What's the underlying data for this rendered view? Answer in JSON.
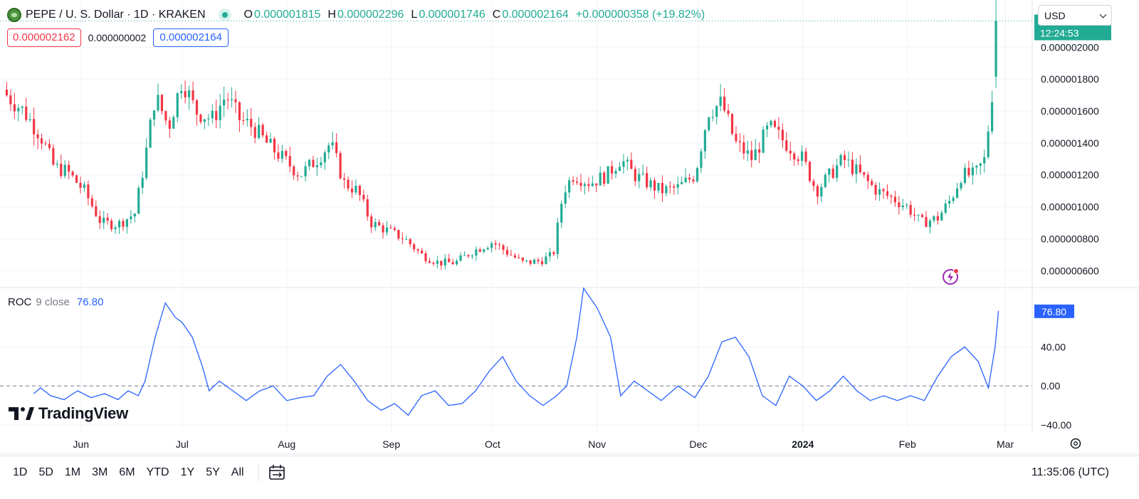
{
  "header": {
    "symbol_title": "PEPE / U. S. Dollar · 1D · KRAKEN",
    "ohlc": [
      {
        "key": "O",
        "value": "0.000001815"
      },
      {
        "key": "H",
        "value": "0.000002296"
      },
      {
        "key": "L",
        "value": "0.000001746"
      },
      {
        "key": "C",
        "value": "0.000002164"
      }
    ],
    "change": "+0.000000358 (+19.82%)",
    "bid": "0.000002162",
    "spread": "0.000000002",
    "ask": "0.000002164",
    "currency": "USD"
  },
  "colors": {
    "up": "#22ab94",
    "down": "#f23645",
    "roc_line": "#2962ff",
    "price_label_bg": "#22ab94",
    "roc_label_bg": "#2962ff"
  },
  "chart_data": [
    {
      "type": "candlestick",
      "title": "PEPE / U. S. Dollar · 1D · KRAKEN",
      "y_ticks": [
        "0.000002000",
        "0.000001800",
        "0.000001600",
        "0.000001400",
        "0.000001200",
        "0.000001000",
        "0.000000800",
        "0.000000600"
      ],
      "y_tick_values": [
        2e-06,
        1.8e-06,
        1.6e-06,
        1.4e-06,
        1.2e-06,
        1e-06,
        8e-07,
        6e-07
      ],
      "x_ticks": [
        "Jun",
        "Jul",
        "Aug",
        "Sep",
        "Oct",
        "Nov",
        "Dec",
        "2024",
        "Feb",
        "Mar"
      ],
      "x_tick_dates": [
        "2023-06-01",
        "2023-07-01",
        "2023-08-01",
        "2023-09-01",
        "2023-10-01",
        "2023-11-01",
        "2023-12-01",
        "2024-01-01",
        "2024-02-01",
        "2024-03-01"
      ],
      "ylim": [
        5.3e-07,
        2.26e-06
      ],
      "x_range": [
        "2023-05-08",
        "2024-03-09"
      ],
      "grid": true,
      "last_price_label": "0.000002164",
      "countdown_label": "12:24:53",
      "series": [
        {
          "date": "2023-05-10",
          "close": 1.7e-06
        },
        {
          "date": "2023-05-15",
          "close": 1.6e-06
        },
        {
          "date": "2023-05-20",
          "close": 1.45e-06
        },
        {
          "date": "2023-05-24",
          "close": 1.25e-06
        },
        {
          "date": "2023-05-28",
          "close": 1.22e-06
        },
        {
          "date": "2023-06-02",
          "close": 1.1e-06
        },
        {
          "date": "2023-06-07",
          "close": 9e-07
        },
        {
          "date": "2023-06-12",
          "close": 8.9e-07
        },
        {
          "date": "2023-06-17",
          "close": 9.6e-07
        },
        {
          "date": "2023-06-20",
          "close": 1.3e-06
        },
        {
          "date": "2023-06-23",
          "close": 1.7e-06
        },
        {
          "date": "2023-06-27",
          "close": 1.5e-06
        },
        {
          "date": "2023-07-01",
          "close": 1.8e-06
        },
        {
          "date": "2023-07-05",
          "close": 1.6e-06
        },
        {
          "date": "2023-07-10",
          "close": 1.55e-06
        },
        {
          "date": "2023-07-14",
          "close": 1.7e-06
        },
        {
          "date": "2023-07-18",
          "close": 1.55e-06
        },
        {
          "date": "2023-07-22",
          "close": 1.5e-06
        },
        {
          "date": "2023-07-26",
          "close": 1.4e-06
        },
        {
          "date": "2023-07-31",
          "close": 1.3e-06
        },
        {
          "date": "2023-08-05",
          "close": 1.2e-06
        },
        {
          "date": "2023-08-10",
          "close": 1.3e-06
        },
        {
          "date": "2023-08-14",
          "close": 1.4e-06
        },
        {
          "date": "2023-08-18",
          "close": 1.15e-06
        },
        {
          "date": "2023-08-22",
          "close": 1.1e-06
        },
        {
          "date": "2023-08-26",
          "close": 9e-07
        },
        {
          "date": "2023-08-31",
          "close": 8.5e-07
        },
        {
          "date": "2023-09-05",
          "close": 8e-07
        },
        {
          "date": "2023-09-10",
          "close": 7e-07
        },
        {
          "date": "2023-09-15",
          "close": 6.5e-07
        },
        {
          "date": "2023-09-20",
          "close": 6.5e-07
        },
        {
          "date": "2023-09-25",
          "close": 7.2e-07
        },
        {
          "date": "2023-10-01",
          "close": 7.8e-07
        },
        {
          "date": "2023-10-05",
          "close": 7.2e-07
        },
        {
          "date": "2023-10-10",
          "close": 6.5e-07
        },
        {
          "date": "2023-10-15",
          "close": 6.6e-07
        },
        {
          "date": "2023-10-19",
          "close": 7e-07
        },
        {
          "date": "2023-10-22",
          "close": 1.1e-06
        },
        {
          "date": "2023-10-25",
          "close": 1.2e-06
        },
        {
          "date": "2023-10-30",
          "close": 1.15e-06
        },
        {
          "date": "2023-11-04",
          "close": 1.2e-06
        },
        {
          "date": "2023-11-08",
          "close": 1.3e-06
        },
        {
          "date": "2023-11-12",
          "close": 1.2e-06
        },
        {
          "date": "2023-11-16",
          "close": 1.15e-06
        },
        {
          "date": "2023-11-20",
          "close": 1.1e-06
        },
        {
          "date": "2023-11-25",
          "close": 1.12e-06
        },
        {
          "date": "2023-11-30",
          "close": 1.2e-06
        },
        {
          "date": "2023-12-04",
          "close": 1.6e-06
        },
        {
          "date": "2023-12-08",
          "close": 1.65e-06
        },
        {
          "date": "2023-12-12",
          "close": 1.4e-06
        },
        {
          "date": "2023-12-17",
          "close": 1.3e-06
        },
        {
          "date": "2023-12-22",
          "close": 1.5e-06
        },
        {
          "date": "2023-12-27",
          "close": 1.4e-06
        },
        {
          "date": "2024-01-01",
          "close": 1.3e-06
        },
        {
          "date": "2024-01-05",
          "close": 1.1e-06
        },
        {
          "date": "2024-01-09",
          "close": 1.2e-06
        },
        {
          "date": "2024-01-13",
          "close": 1.3e-06
        },
        {
          "date": "2024-01-18",
          "close": 1.2e-06
        },
        {
          "date": "2024-01-23",
          "close": 1.1e-06
        },
        {
          "date": "2024-01-28",
          "close": 1.05e-06
        },
        {
          "date": "2024-02-01",
          "close": 1e-06
        },
        {
          "date": "2024-02-05",
          "close": 9e-07
        },
        {
          "date": "2024-02-10",
          "close": 9.3e-07
        },
        {
          "date": "2024-02-14",
          "close": 1.05e-06
        },
        {
          "date": "2024-02-17",
          "close": 1.2e-06
        },
        {
          "date": "2024-02-21",
          "close": 1.2e-06
        },
        {
          "date": "2024-02-24",
          "close": 1.3e-06
        },
        {
          "date": "2024-02-26",
          "close": 1.7e-06
        },
        {
          "date": "2024-02-27",
          "close": 1.8e-06
        },
        {
          "date": "2024-02-28",
          "close": 2.164e-06
        }
      ]
    },
    {
      "type": "line",
      "title": "ROC 9 close",
      "y_ticks": [
        "40.00",
        "0.00",
        "−40.00"
      ],
      "y_tick_values": [
        40,
        0,
        -40
      ],
      "ylim": [
        -48,
        100
      ],
      "zero_line": "dashed",
      "last_value_label": "76.80",
      "series": [
        {
          "name": "ROC",
          "points": [
            {
              "date": "2023-05-18",
              "value": -8
            },
            {
              "date": "2023-05-20",
              "value": -2
            },
            {
              "date": "2023-05-23",
              "value": -10
            },
            {
              "date": "2023-05-27",
              "value": -14
            },
            {
              "date": "2023-05-31",
              "value": -5
            },
            {
              "date": "2023-06-04",
              "value": -12
            },
            {
              "date": "2023-06-08",
              "value": -8
            },
            {
              "date": "2023-06-12",
              "value": -14
            },
            {
              "date": "2023-06-15",
              "value": -5
            },
            {
              "date": "2023-06-18",
              "value": -10
            },
            {
              "date": "2023-06-20",
              "value": 5
            },
            {
              "date": "2023-06-23",
              "value": 50
            },
            {
              "date": "2023-06-26",
              "value": 85
            },
            {
              "date": "2023-06-29",
              "value": 70
            },
            {
              "date": "2023-07-01",
              "value": 65
            },
            {
              "date": "2023-07-04",
              "value": 50
            },
            {
              "date": "2023-07-07",
              "value": 20
            },
            {
              "date": "2023-07-09",
              "value": -5
            },
            {
              "date": "2023-07-12",
              "value": 5
            },
            {
              "date": "2023-07-16",
              "value": -5
            },
            {
              "date": "2023-07-20",
              "value": -15
            },
            {
              "date": "2023-07-24",
              "value": -5
            },
            {
              "date": "2023-07-28",
              "value": 0
            },
            {
              "date": "2023-08-01",
              "value": -15
            },
            {
              "date": "2023-08-05",
              "value": -12
            },
            {
              "date": "2023-08-09",
              "value": -10
            },
            {
              "date": "2023-08-13",
              "value": 10
            },
            {
              "date": "2023-08-17",
              "value": 22
            },
            {
              "date": "2023-08-21",
              "value": 5
            },
            {
              "date": "2023-08-25",
              "value": -15
            },
            {
              "date": "2023-08-29",
              "value": -25
            },
            {
              "date": "2023-09-02",
              "value": -18
            },
            {
              "date": "2023-09-06",
              "value": -30
            },
            {
              "date": "2023-09-10",
              "value": -10
            },
            {
              "date": "2023-09-14",
              "value": -5
            },
            {
              "date": "2023-09-18",
              "value": -20
            },
            {
              "date": "2023-09-22",
              "value": -18
            },
            {
              "date": "2023-09-26",
              "value": -5
            },
            {
              "date": "2023-09-30",
              "value": 15
            },
            {
              "date": "2023-10-04",
              "value": 30
            },
            {
              "date": "2023-10-08",
              "value": 5
            },
            {
              "date": "2023-10-12",
              "value": -10
            },
            {
              "date": "2023-10-16",
              "value": -20
            },
            {
              "date": "2023-10-20",
              "value": -10
            },
            {
              "date": "2023-10-23",
              "value": 0
            },
            {
              "date": "2023-10-26",
              "value": 50
            },
            {
              "date": "2023-10-28",
              "value": 100
            },
            {
              "date": "2023-11-01",
              "value": 80
            },
            {
              "date": "2023-11-05",
              "value": 50
            },
            {
              "date": "2023-11-08",
              "value": -10
            },
            {
              "date": "2023-11-12",
              "value": 5
            },
            {
              "date": "2023-11-16",
              "value": -5
            },
            {
              "date": "2023-11-20",
              "value": -15
            },
            {
              "date": "2023-11-25",
              "value": 0
            },
            {
              "date": "2023-11-30",
              "value": -12
            },
            {
              "date": "2023-12-04",
              "value": 10
            },
            {
              "date": "2023-12-08",
              "value": 45
            },
            {
              "date": "2023-12-12",
              "value": 50
            },
            {
              "date": "2023-12-16",
              "value": 30
            },
            {
              "date": "2023-12-20",
              "value": -10
            },
            {
              "date": "2023-12-24",
              "value": -20
            },
            {
              "date": "2023-12-28",
              "value": 10
            },
            {
              "date": "2024-01-01",
              "value": 0
            },
            {
              "date": "2024-01-05",
              "value": -15
            },
            {
              "date": "2024-01-09",
              "value": -5
            },
            {
              "date": "2024-01-13",
              "value": 10
            },
            {
              "date": "2024-01-17",
              "value": -5
            },
            {
              "date": "2024-01-21",
              "value": -15
            },
            {
              "date": "2024-01-25",
              "value": -10
            },
            {
              "date": "2024-01-29",
              "value": -15
            },
            {
              "date": "2024-02-02",
              "value": -10
            },
            {
              "date": "2024-02-06",
              "value": -15
            },
            {
              "date": "2024-02-10",
              "value": 10
            },
            {
              "date": "2024-02-14",
              "value": 30
            },
            {
              "date": "2024-02-18",
              "value": 40
            },
            {
              "date": "2024-02-22",
              "value": 25
            },
            {
              "date": "2024-02-25",
              "value": -2
            },
            {
              "date": "2024-02-27",
              "value": 40
            },
            {
              "date": "2024-02-28",
              "value": 76.8
            }
          ]
        }
      ]
    }
  ],
  "indicator": {
    "name": "ROC",
    "params": "9 close",
    "value": "76.80"
  },
  "branding": {
    "logo_text": "TradingView"
  },
  "bottom_bar": {
    "ranges": [
      "1D",
      "5D",
      "1M",
      "3M",
      "6M",
      "YTD",
      "1Y",
      "5Y",
      "All"
    ],
    "clock": "11:35:06 (UTC)"
  }
}
